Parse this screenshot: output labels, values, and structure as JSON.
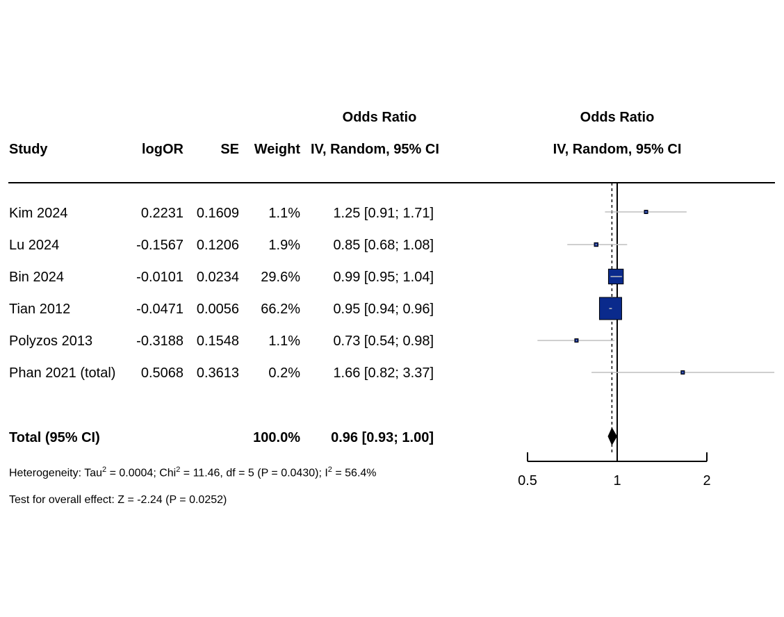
{
  "headers": {
    "study": "Study",
    "logor": "logOR",
    "se": "SE",
    "weight": "Weight",
    "or_line1": "Odds Ratio",
    "or_line2": "IV, Random, 95% CI",
    "plot_line1": "Odds Ratio",
    "plot_line2": "IV, Random, 95% CI"
  },
  "studies": [
    {
      "name": "Kim 2024",
      "logor": "0.2231",
      "se": "0.1609",
      "weight": "1.1%",
      "ci": "1.25 [0.91; 1.71]"
    },
    {
      "name": "Lu 2024",
      "logor": "-0.1567",
      "se": "0.1206",
      "weight": "1.9%",
      "ci": "0.85 [0.68; 1.08]"
    },
    {
      "name": "Bin 2024",
      "logor": "-0.0101",
      "se": "0.0234",
      "weight": "29.6%",
      "ci": "0.99 [0.95; 1.04]"
    },
    {
      "name": "Tian 2012",
      "logor": "-0.0471",
      "se": "0.0056",
      "weight": "66.2%",
      "ci": "0.95 [0.94; 0.96]"
    },
    {
      "name": "Polyzos 2013",
      "logor": "-0.3188",
      "se": "0.1548",
      "weight": "1.1%",
      "ci": "0.73 [0.54; 0.98]"
    },
    {
      "name": "Phan 2021 (total)",
      "logor": "0.5068",
      "se": "0.3613",
      "weight": "0.2%",
      "ci": "1.66 [0.82; 3.37]"
    }
  ],
  "total": {
    "label": "Total (95% CI)",
    "weight": "100.0%",
    "ci": "0.96 [0.93; 1.00]"
  },
  "heterogeneity": {
    "prefix": "Heterogeneity: Tau",
    "tau2": "2",
    "a": " = 0.0004; Chi",
    "chi2": "2",
    "b": " = 11.46, df = 5 (P = 0.0430); I",
    "i2": "2",
    "c": " = 56.4%"
  },
  "overall_effect": "Test for overall effect: Z = -2.24 (P = 0.0252)",
  "colors": {
    "box": "#0A2A8C",
    "ci_line": "#BFBFBF",
    "diamond": "#000000"
  },
  "chart_data": {
    "type": "forest",
    "x_scale": "log",
    "xlim": [
      0.5,
      2
    ],
    "x_ticks": [
      "0.5",
      "1",
      "2"
    ],
    "null_line": 1,
    "pooled_line": 0.96,
    "studies": [
      {
        "name": "Kim 2024",
        "or": 1.25,
        "lower": 0.91,
        "upper": 1.71,
        "weight": 1.1
      },
      {
        "name": "Lu 2024",
        "or": 0.85,
        "lower": 0.68,
        "upper": 1.08,
        "weight": 1.9
      },
      {
        "name": "Bin 2024",
        "or": 0.99,
        "lower": 0.95,
        "upper": 1.04,
        "weight": 29.6
      },
      {
        "name": "Tian 2012",
        "or": 0.95,
        "lower": 0.94,
        "upper": 0.96,
        "weight": 66.2
      },
      {
        "name": "Polyzos 2013",
        "or": 0.73,
        "lower": 0.54,
        "upper": 0.98,
        "weight": 1.1
      },
      {
        "name": "Phan 2021 (total)",
        "or": 1.66,
        "lower": 0.82,
        "upper": 3.37,
        "weight": 0.2
      }
    ],
    "pooled": {
      "or": 0.96,
      "lower": 0.93,
      "upper": 1.0
    }
  }
}
